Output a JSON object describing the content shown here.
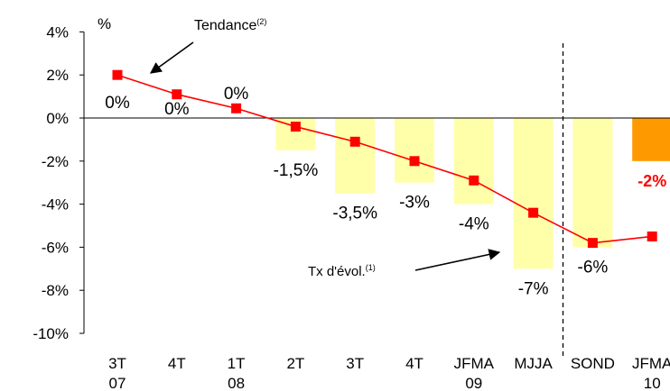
{
  "chart_data": {
    "type": "bar",
    "unit_label": "%",
    "categories": [
      {
        "line1": "3T",
        "line2": "07"
      },
      {
        "line1": "4T",
        "line2": ""
      },
      {
        "line1": "1T",
        "line2": "08"
      },
      {
        "line1": "2T",
        "line2": ""
      },
      {
        "line1": "3T",
        "line2": ""
      },
      {
        "line1": "4T",
        "line2": ""
      },
      {
        "line1": "JFMA",
        "line2": "09"
      },
      {
        "line1": "MJJA",
        "line2": ""
      },
      {
        "line1": "SOND",
        "line2": ""
      },
      {
        "line1": "JFMA",
        "line2": "10"
      }
    ],
    "ylim": [
      -10,
      4
    ],
    "yticks": [
      4,
      2,
      0,
      -2,
      -4,
      -6,
      -8,
      -10
    ],
    "ytick_labels": [
      "4%",
      "2%",
      "0%",
      "-2%",
      "-4%",
      "-6%",
      "-8%",
      "-10%"
    ],
    "bars": {
      "values": [
        0,
        0,
        0,
        -1.5,
        -3.5,
        -3,
        -4,
        -7,
        -6,
        -2
      ],
      "labels": [
        "0%",
        "0%",
        "0%",
        "-1,5%",
        "-3,5%",
        "-3%",
        "-4%",
        "-7%",
        "-6%",
        "-2%"
      ],
      "highlight_index": 9
    },
    "trend": {
      "values": [
        2.0,
        1.1,
        0.45,
        -0.4,
        -1.1,
        -2.0,
        -2.9,
        -4.4,
        -5.8,
        -5.5
      ]
    },
    "annotations": {
      "trend_label": "Tendance",
      "trend_sup": "(2)",
      "rate_label": "Tx d'évol.",
      "rate_sup": "(1)"
    },
    "divider_after_index": 7,
    "colors": {
      "bar": "#ffffaa",
      "bar_highlight": "#ff9900",
      "trend_line": "#ff0000",
      "highlight_label": "#ff0000",
      "axis": "#000000"
    }
  }
}
